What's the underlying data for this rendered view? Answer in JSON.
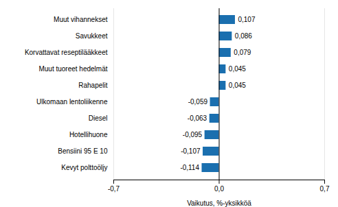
{
  "chart_data": {
    "type": "bar",
    "orientation": "horizontal",
    "categories": [
      "Kevyt polttoöljy",
      "Bensiini 95 E 10",
      "Hotellihuone",
      "Diesel",
      "Ulkomaan lentoliikenne",
      "Rahapelit",
      "Muut tuoreet hedelmät",
      "Korvattavat reseptilääkkeet",
      "Savukkeet",
      "Muut vihannekset"
    ],
    "values": [
      -0.114,
      -0.107,
      -0.095,
      -0.063,
      -0.059,
      0.045,
      0.045,
      0.079,
      0.086,
      0.107
    ],
    "value_labels": [
      "-0,114",
      "-0,107",
      "-0,095",
      "-0,063",
      "-0,059",
      "0,045",
      "0,045",
      "0,079",
      "0,086",
      "0,107"
    ],
    "data_labels": true,
    "color": "#1a6faf",
    "xlabel": "Vaikutus, %-yksikköä",
    "xlim": [
      -0.7,
      0.7
    ],
    "xticks": [
      {
        "value": -0.7,
        "label": "-0,7"
      },
      {
        "value": 0.0,
        "label": "0,0"
      },
      {
        "value": 0.7,
        "label": "0,7"
      }
    ],
    "grid": true
  }
}
